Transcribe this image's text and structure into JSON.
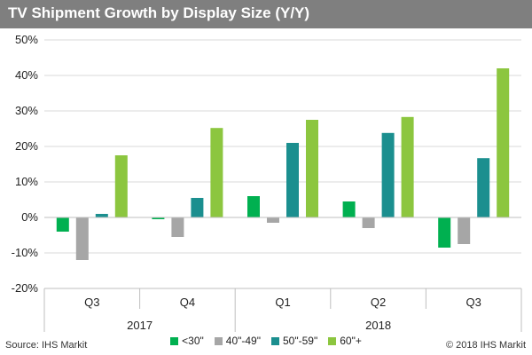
{
  "header": {
    "title": "TV Shipment Growth by Display Size (Y/Y)"
  },
  "footer": {
    "source": "Source: IHS Markit",
    "copyright": "© 2018 IHS Markit"
  },
  "chart_data": {
    "type": "bar",
    "title": "TV Shipment Growth by Display Size (Y/Y)",
    "xlabel": "",
    "ylabel": "",
    "ylim": [
      -20,
      50
    ],
    "yticks": [
      -20,
      -10,
      0,
      10,
      20,
      30,
      40,
      50
    ],
    "ytick_labels": [
      "-20%",
      "-10%",
      "0%",
      "10%",
      "20%",
      "30%",
      "40%",
      "50%"
    ],
    "grid": true,
    "legend_position": "bottom",
    "categories": [
      "Q3",
      "Q4",
      "Q1",
      "Q2",
      "Q3"
    ],
    "groups": [
      {
        "label": "2017",
        "categories": [
          0,
          1
        ]
      },
      {
        "label": "2018",
        "categories": [
          2,
          3,
          4
        ]
      }
    ],
    "series": [
      {
        "name": "<30\"",
        "color": "#00b050",
        "values": [
          -4,
          -0.5,
          6,
          4.5,
          -8.5
        ]
      },
      {
        "name": "40\"-49\"",
        "color": "#a6a6a6",
        "values": [
          -12,
          -5.5,
          -1.5,
          -3,
          -7.5
        ]
      },
      {
        "name": "50\"-59\"",
        "color": "#1b8f8f",
        "values": [
          1,
          5.5,
          21,
          23.8,
          16.7
        ]
      },
      {
        "name": "60\"+",
        "color": "#8cc63f",
        "values": [
          17.5,
          25.2,
          27.5,
          28.3,
          42
        ]
      }
    ]
  }
}
